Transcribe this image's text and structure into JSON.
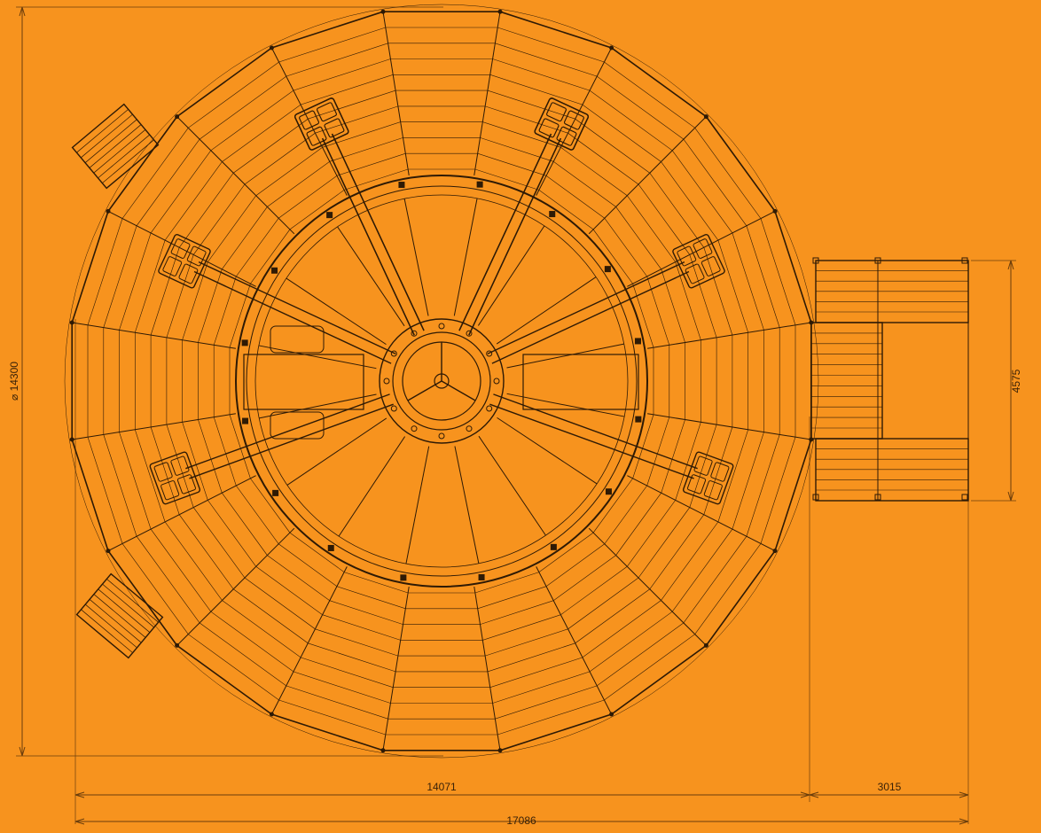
{
  "drawing": {
    "background": "#f7931e",
    "line_color": "#2e1a05",
    "dim_color": "#6b3e0c",
    "diameter_label": "⌀ 14300",
    "platform_width_label": "4575",
    "overall_width_label": "14071",
    "ramp_width_label": "3015",
    "total_length_label": "17086"
  }
}
